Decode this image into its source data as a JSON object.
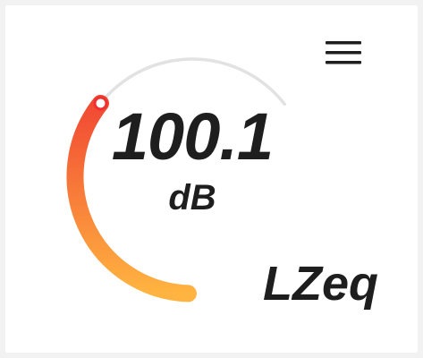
{
  "meter": {
    "value": "100.1",
    "unit": "dB",
    "mode": "LZeq",
    "level_fraction": 0.55
  },
  "menu": {
    "icon": "hamburger-menu-icon"
  },
  "colors": {
    "arc_start": "#ffb340",
    "arc_end": "#ee3030",
    "track": "#e2e2e2",
    "text": "#1e1e1e"
  }
}
